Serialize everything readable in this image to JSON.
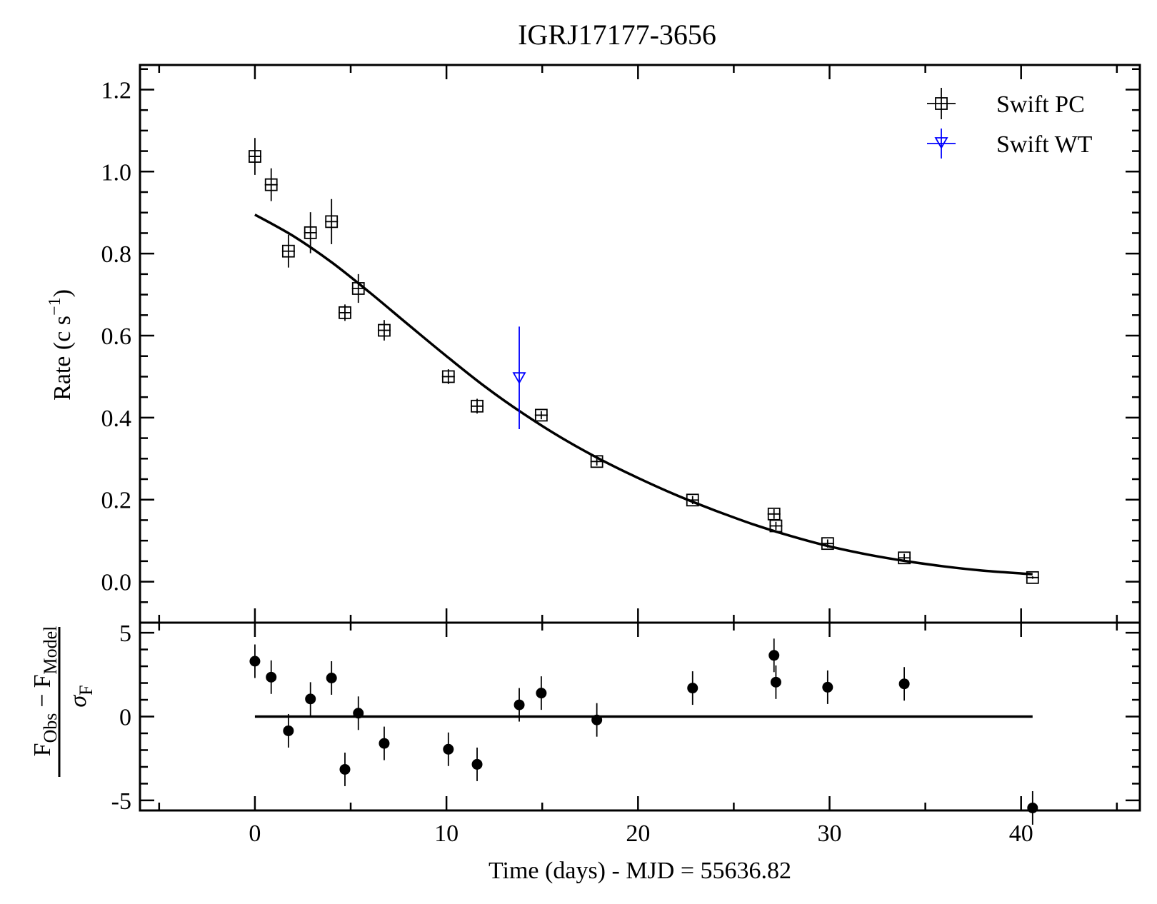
{
  "chart_data": {
    "type": "scatter",
    "title": "IGRJ17177-3656",
    "xlabel": "Time (days) - MJD = 55636.82",
    "ylabel": {
      "main": "Rate (c s",
      "sup": "−1",
      "close": ")"
    },
    "residual_label": {
      "numerator": "F",
      "numerator_sub_obs": "Obs",
      "minus": "−",
      "model": "F",
      "model_sub": "Model",
      "denominator": "σ",
      "denominator_sub": "F"
    },
    "xlim": [
      -6,
      46.2
    ],
    "ylim": [
      -0.1,
      1.26
    ],
    "residual_ylim": [
      -5.6,
      5.6
    ],
    "x_ticks": [
      0,
      10,
      20,
      30,
      40
    ],
    "x_tick_labels": [
      "0",
      "10",
      "20",
      "30",
      "40"
    ],
    "y_ticks": [
      0.0,
      0.2,
      0.4,
      0.6,
      0.8,
      1.0,
      1.2
    ],
    "y_tick_labels": [
      "0.0",
      "0.2",
      "0.4",
      "0.6",
      "0.8",
      "1.0",
      "1.2"
    ],
    "residual_y_ticks": [
      -5,
      0,
      5
    ],
    "residual_y_tick_labels": [
      "-5",
      "0",
      "5"
    ],
    "legend_position": "top-right",
    "series": [
      {
        "name": "Swift PC",
        "marker": "square",
        "color": "#000000",
        "points": [
          {
            "x": 0.0,
            "y": 1.037,
            "err": 0.045
          },
          {
            "x": 0.85,
            "y": 0.968,
            "err": 0.04
          },
          {
            "x": 1.75,
            "y": 0.806,
            "err": 0.04
          },
          {
            "x": 2.9,
            "y": 0.851,
            "err": 0.05
          },
          {
            "x": 4.0,
            "y": 0.878,
            "err": 0.055
          },
          {
            "x": 4.7,
            "y": 0.656,
            "err": 0.02
          },
          {
            "x": 5.4,
            "y": 0.715,
            "err": 0.035
          },
          {
            "x": 6.75,
            "y": 0.613,
            "err": 0.025
          },
          {
            "x": 10.1,
            "y": 0.5,
            "err": 0.018
          },
          {
            "x": 11.6,
            "y": 0.428,
            "err": 0.018
          },
          {
            "x": 14.95,
            "y": 0.406,
            "err": 0.01
          },
          {
            "x": 17.85,
            "y": 0.293,
            "err": 0.01
          },
          {
            "x": 22.85,
            "y": 0.199,
            "err": 0.01
          },
          {
            "x": 27.1,
            "y": 0.165,
            "err": 0.012
          },
          {
            "x": 27.2,
            "y": 0.136,
            "err": 0.01
          },
          {
            "x": 29.9,
            "y": 0.093,
            "err": 0.01
          },
          {
            "x": 33.9,
            "y": 0.058,
            "err": 0.01
          },
          {
            "x": 40.6,
            "y": 0.01,
            "err": 0.003
          }
        ]
      },
      {
        "name": "Swift WT",
        "marker": "triangle-down",
        "color": "#0000ff",
        "points": [
          {
            "x": 13.8,
            "y": 0.497,
            "err_up": 0.125,
            "err_down": 0.125
          }
        ]
      }
    ],
    "model_curve": {
      "color": "#000000",
      "x": [
        0,
        2,
        4,
        6,
        8,
        10,
        12,
        14,
        16,
        18,
        20,
        22,
        24,
        26,
        28,
        30,
        32,
        34,
        36,
        38,
        40.6
      ],
      "y": [
        0.895,
        0.843,
        0.779,
        0.705,
        0.627,
        0.55,
        0.476,
        0.41,
        0.351,
        0.299,
        0.253,
        0.211,
        0.174,
        0.14,
        0.111,
        0.086,
        0.066,
        0.05,
        0.037,
        0.027,
        0.018
      ]
    },
    "residuals": {
      "color": "#000000",
      "zero_line_x": [
        0,
        40.6
      ],
      "points": [
        {
          "x": 0.0,
          "y": 3.3,
          "err": 1.0
        },
        {
          "x": 0.85,
          "y": 2.35,
          "err": 1.0
        },
        {
          "x": 1.75,
          "y": -0.85,
          "err": 1.0
        },
        {
          "x": 2.9,
          "y": 1.05,
          "err": 1.0
        },
        {
          "x": 4.0,
          "y": 2.3,
          "err": 1.0
        },
        {
          "x": 4.7,
          "y": -3.15,
          "err": 1.0
        },
        {
          "x": 5.4,
          "y": 0.2,
          "err": 1.0
        },
        {
          "x": 6.75,
          "y": -1.6,
          "err": 1.0
        },
        {
          "x": 10.1,
          "y": -1.95,
          "err": 1.0
        },
        {
          "x": 11.6,
          "y": -2.85,
          "err": 1.0
        },
        {
          "x": 13.8,
          "y": 0.7,
          "err": 1.0
        },
        {
          "x": 14.95,
          "y": 1.4,
          "err": 1.0
        },
        {
          "x": 17.85,
          "y": -0.2,
          "err": 1.0
        },
        {
          "x": 22.85,
          "y": 1.7,
          "err": 1.0
        },
        {
          "x": 27.1,
          "y": 3.65,
          "err": 1.0
        },
        {
          "x": 27.2,
          "y": 2.05,
          "err": 1.0
        },
        {
          "x": 29.9,
          "y": 1.75,
          "err": 1.0
        },
        {
          "x": 33.9,
          "y": 1.95,
          "err": 1.0
        },
        {
          "x": 40.6,
          "y": -5.45,
          "err": 1.0
        }
      ]
    }
  }
}
